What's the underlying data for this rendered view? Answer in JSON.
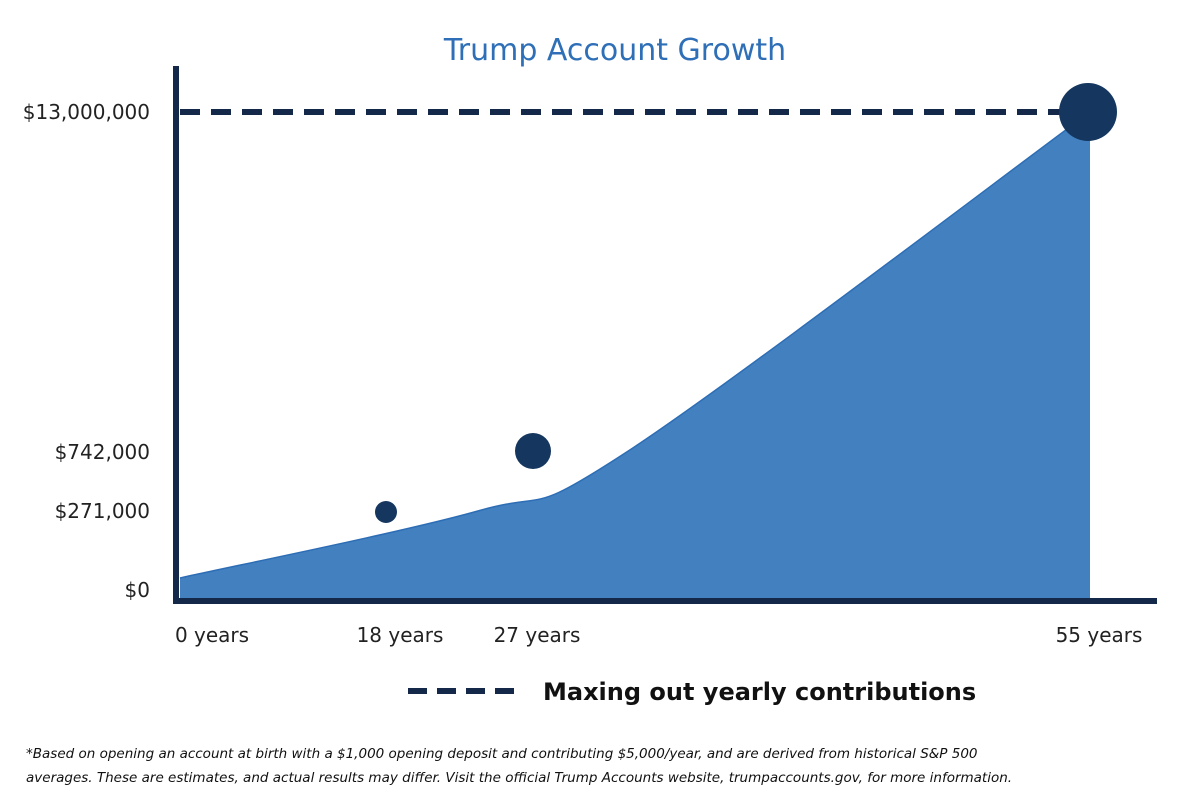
{
  "chart_data": {
    "type": "area",
    "title": "Trump Account Growth",
    "xlabel": "",
    "ylabel": "",
    "x": [
      0,
      18,
      27,
      55
    ],
    "x_tick_labels": [
      "0 years",
      "18 years",
      "27 years",
      "55 years"
    ],
    "y_tick_labels": [
      "$13,000,000",
      "$742,000",
      "$271,000",
      "$0"
    ],
    "y_tick_values": [
      13000000,
      742000,
      271000,
      0
    ],
    "highlighted_points": [
      {
        "x": 18,
        "y": 271000
      },
      {
        "x": 27,
        "y": 742000
      },
      {
        "x": 55,
        "y": 13000000
      }
    ],
    "reference_line": {
      "y": 13000000,
      "style": "dashed",
      "label": "Maxing out yearly contributions"
    },
    "legend_position": "bottom-center",
    "grid": false,
    "colors": {
      "area": "#4280bf",
      "area_edge": "#2d6db5",
      "points": "#14365f",
      "axes": "#14294a",
      "title": "#2e6fb7",
      "dash": "#14294a"
    }
  },
  "footnote": {
    "line1": "*Based on opening an account at birth with a $1,000 opening deposit and contributing $5,000/year, and are derived from historical S&P 500",
    "line2": "averages. These are estimates, and actual results may differ. Visit the official Trump Accounts website, trumpaccounts.gov, for more information."
  }
}
